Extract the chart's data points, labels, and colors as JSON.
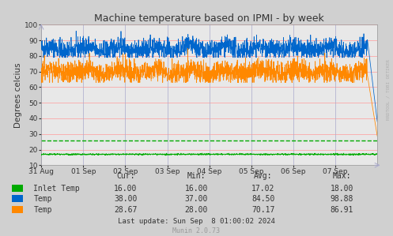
{
  "title": "Machine temperature based on IPMI - by week",
  "ylabel": "Degrees celcius",
  "background_color": "#d0d0d0",
  "plot_bg_color": "#e8e8e8",
  "grid_color_h": "#ff9999",
  "grid_color_v": "#aaaacc",
  "ylim": [
    10,
    100
  ],
  "yticks": [
    10,
    20,
    30,
    40,
    50,
    60,
    70,
    80,
    90,
    100
  ],
  "x_labels": [
    "31 Aug",
    "01 Sep",
    "02 Sep",
    "03 Sep",
    "04 Sep",
    "05 Sep",
    "06 Sep",
    "07 Sep"
  ],
  "inlet_temp_dashed": 26.0,
  "legend_items": [
    {
      "label": "Inlet Temp",
      "color": "#00aa00"
    },
    {
      "label": "Temp",
      "color": "#0066cc"
    },
    {
      "label": "Temp",
      "color": "#ff8800"
    }
  ],
  "table_headers": [
    "Cur:",
    "Min:",
    "Avg:",
    "Max:"
  ],
  "table_data": [
    [
      "16.00",
      "16.00",
      "17.02",
      "18.00"
    ],
    [
      "38.00",
      "37.00",
      "84.50",
      "98.88"
    ],
    [
      "28.67",
      "28.00",
      "70.17",
      "86.91"
    ]
  ],
  "last_update": "Last update: Sun Sep  8 01:00:02 2024",
  "munin_version": "Munin 2.0.73",
  "watermark": "RRDTOOL / TOBI OETIKER"
}
